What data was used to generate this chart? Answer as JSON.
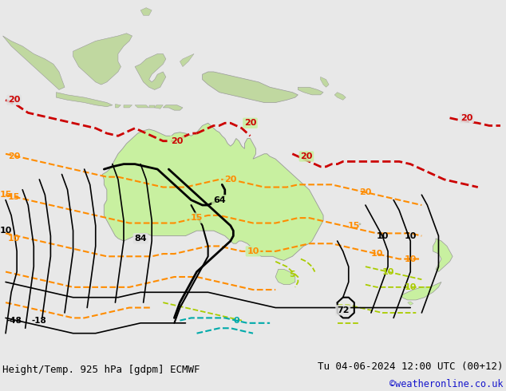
{
  "title_left": "Height/Temp. 925 hPa [gdpm] ECMWF",
  "title_right": "Tu 04-06-2024 12:00 UTC (00+12)",
  "credit": "©weatheronline.co.uk",
  "bg_color": "#e8e8e8",
  "ocean_color": "#e0e0e0",
  "australia_color": "#c8f0a0",
  "land_color": "#c0d8a0",
  "figsize": [
    6.34,
    4.9
  ],
  "dpi": 100,
  "title_fontsize": 9.0,
  "credit_fontsize": 8.5,
  "lon_min": 95,
  "lon_max": 185,
  "lat_min": -58,
  "lat_max": 12
}
